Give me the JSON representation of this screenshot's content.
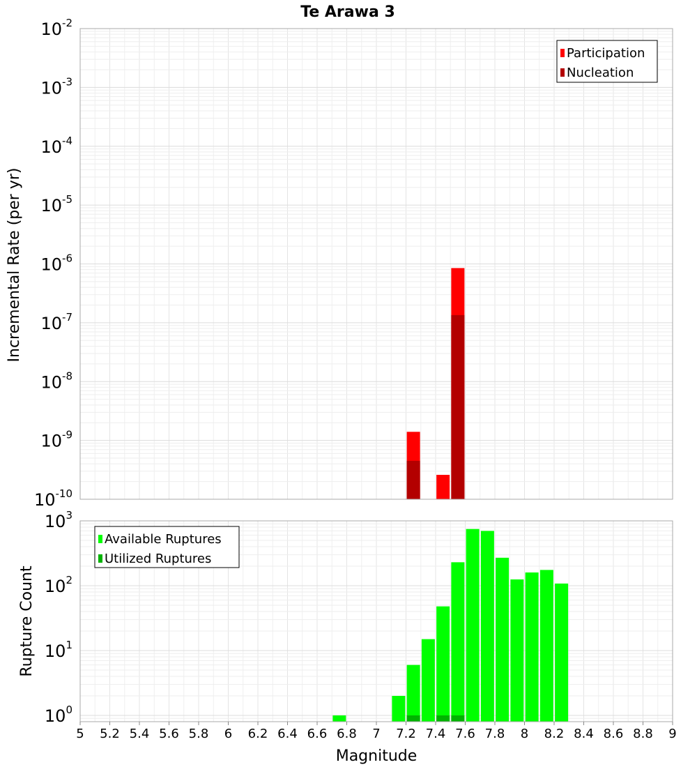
{
  "chart_data": [
    {
      "type": "bar",
      "title": "Te Arawa 3",
      "xlabel": "Magnitude",
      "ylabel": "Incremental Rate (per yr)",
      "yscale": "log",
      "xlim": [
        5,
        9
      ],
      "ylim": [
        1e-10,
        0.01
      ],
      "ytick_labels": [
        {
          "base": "10",
          "exp": "-10",
          "value": 1e-10
        },
        {
          "base": "10",
          "exp": "-9",
          "value": 1e-09
        },
        {
          "base": "10",
          "exp": "-8",
          "value": 1e-08
        },
        {
          "base": "10",
          "exp": "-7",
          "value": 1e-07
        },
        {
          "base": "10",
          "exp": "-6",
          "value": 1e-06
        },
        {
          "base": "10",
          "exp": "-5",
          "value": 1e-05
        },
        {
          "base": "10",
          "exp": "-4",
          "value": 0.0001
        },
        {
          "base": "10",
          "exp": "-3",
          "value": 0.001
        },
        {
          "base": "10",
          "exp": "-2",
          "value": 0.01
        }
      ],
      "legend": {
        "placement": "top-right",
        "entries": [
          "Participation",
          "Nucleation"
        ]
      },
      "series": [
        {
          "name": "Participation",
          "color": "#ff0000",
          "x": [
            7.25,
            7.45,
            7.55
          ],
          "values": [
            1.4e-09,
            2.6e-10,
            8.5e-07
          ]
        },
        {
          "name": "Nucleation",
          "color": "#b30000",
          "x": [
            7.25,
            7.55
          ],
          "values": [
            4.5e-10,
            1.35e-07
          ]
        }
      ]
    },
    {
      "type": "bar",
      "xlabel": "Magnitude",
      "ylabel": "Rupture Count",
      "yscale": "log",
      "xlim": [
        5,
        9
      ],
      "ylim": [
        0.8,
        1000
      ],
      "ytick_labels": [
        {
          "base": "10",
          "exp": "0",
          "value": 1
        },
        {
          "base": "10",
          "exp": "1",
          "value": 10
        },
        {
          "base": "10",
          "exp": "2",
          "value": 100
        },
        {
          "base": "10",
          "exp": "3",
          "value": 1000
        }
      ],
      "legend": {
        "placement": "top-left",
        "entries": [
          "Available Ruptures",
          "Utilized Ruptures"
        ]
      },
      "series": [
        {
          "name": "Available Ruptures",
          "color": "#00ff00",
          "x": [
            6.75,
            7.15,
            7.25,
            7.35,
            7.45,
            7.55,
            7.65,
            7.75,
            7.85,
            7.95,
            8.05,
            8.15,
            8.25
          ],
          "values": [
            1,
            2,
            6,
            15,
            48,
            230,
            750,
            700,
            270,
            125,
            160,
            175,
            108
          ]
        },
        {
          "name": "Utilized Ruptures",
          "color": "#00b300",
          "x": [
            7.25,
            7.45,
            7.55
          ],
          "values": [
            1,
            1,
            1
          ]
        }
      ],
      "xtick_labels": [
        "5",
        "5.2",
        "5.4",
        "5.6",
        "5.8",
        "6",
        "6.2",
        "6.4",
        "6.6",
        "6.8",
        "7",
        "7.2",
        "7.4",
        "7.6",
        "7.8",
        "8",
        "8.2",
        "8.4",
        "8.6",
        "8.8",
        "9"
      ]
    }
  ]
}
